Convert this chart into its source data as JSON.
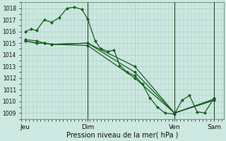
{
  "bg_color": "#cce8e0",
  "grid_color": "#aaccC4",
  "line_color": "#1a6020",
  "xlabel": "Pression niveau de la mer( hPa )",
  "ylim": [
    1008.5,
    1018.5
  ],
  "yticks": [
    1009,
    1010,
    1011,
    1012,
    1013,
    1014,
    1015,
    1016,
    1017,
    1018
  ],
  "xtick_positions": [
    0,
    0.33,
    0.58,
    0.79,
    1.0
  ],
  "xtick_labels": [
    "Jeu",
    "Dim",
    "",
    "Ven",
    "Sam"
  ],
  "series1_x": [
    0.0,
    0.03,
    0.06,
    0.1,
    0.14,
    0.18,
    0.22,
    0.26,
    0.3,
    0.33,
    0.37,
    0.4,
    0.44,
    0.47,
    0.5,
    0.54,
    0.58,
    0.62,
    0.66,
    0.7,
    0.74,
    0.79,
    0.83,
    0.87,
    0.91,
    0.95,
    1.0
  ],
  "series1_y": [
    1016.0,
    1016.2,
    1016.1,
    1017.0,
    1016.8,
    1017.2,
    1018.0,
    1018.1,
    1017.9,
    1017.1,
    1015.2,
    1014.5,
    1014.3,
    1014.4,
    1013.1,
    1012.5,
    1012.2,
    1011.5,
    1010.3,
    1009.5,
    1009.0,
    1008.9,
    1010.1,
    1010.5,
    1009.1,
    1009.0,
    1010.3
  ],
  "series2_x": [
    0.0,
    0.06,
    0.1,
    0.14,
    0.33,
    0.58,
    0.79,
    1.0
  ],
  "series2_y": [
    1015.3,
    1015.2,
    1015.0,
    1014.9,
    1015.0,
    1013.0,
    1009.0,
    1010.2
  ],
  "series3_x": [
    0.0,
    0.06,
    0.1,
    0.14,
    0.33,
    0.58,
    0.79,
    1.0
  ],
  "series3_y": [
    1015.2,
    1015.0,
    1015.0,
    1014.9,
    1015.0,
    1012.5,
    1009.0,
    1010.1
  ],
  "series4_x": [
    0.0,
    0.06,
    0.1,
    0.14,
    0.33,
    0.58,
    0.79,
    1.0
  ],
  "series4_y": [
    1015.2,
    1015.0,
    1015.0,
    1014.9,
    1014.8,
    1012.0,
    1009.0,
    1010.1
  ],
  "vline_positions": [
    0.33,
    0.79,
    1.0
  ],
  "figwidth": 3.2,
  "figheight": 2.0,
  "dpi": 100
}
